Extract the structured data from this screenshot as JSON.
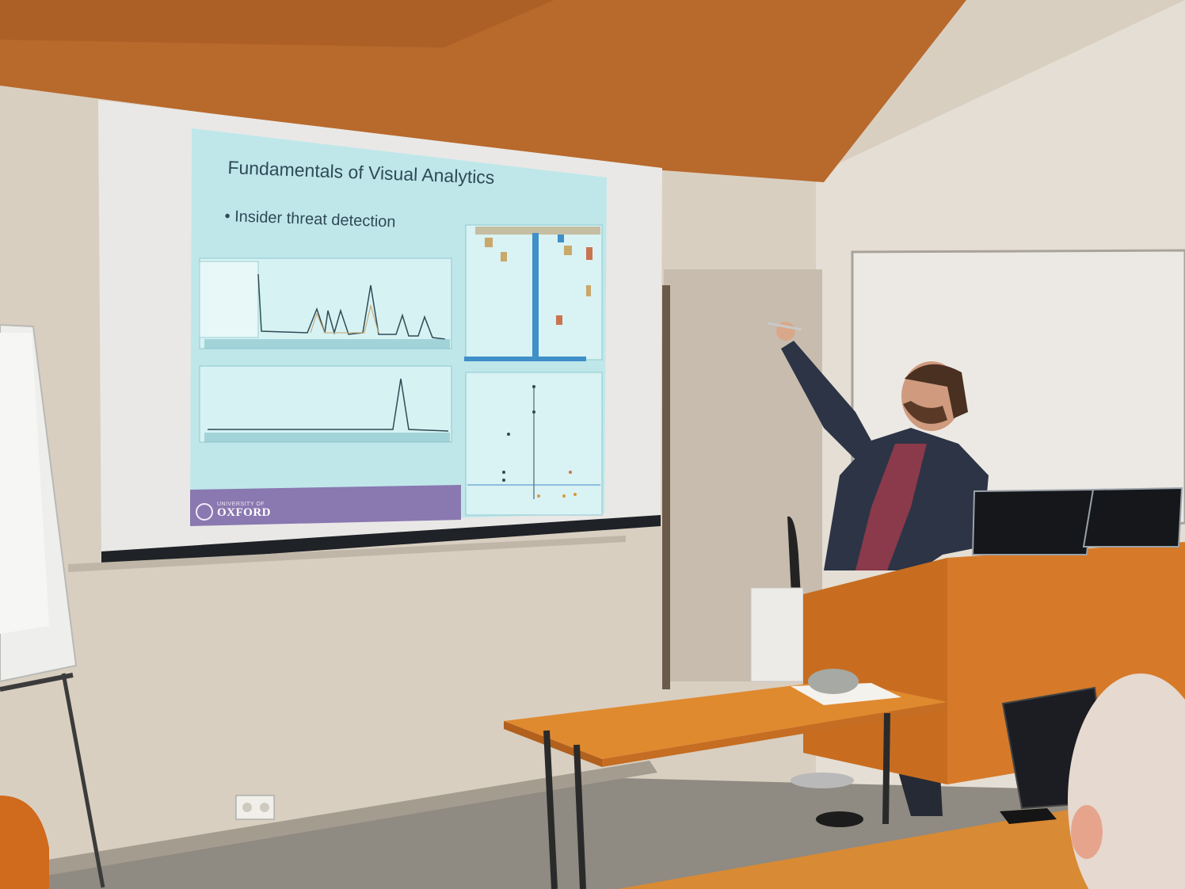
{
  "slide": {
    "title": "Fundamentals of Visual Analytics",
    "bullet": "Insider threat detection"
  },
  "logo": {
    "line1": "UNIVERSITY OF",
    "line2": "OXFORD"
  },
  "colors": {
    "slide_background": "#bfe7ea",
    "oxford_band": "#8a78b0",
    "ceiling_wood": "#b86a2c",
    "podium_wood": "#d67a2a"
  }
}
